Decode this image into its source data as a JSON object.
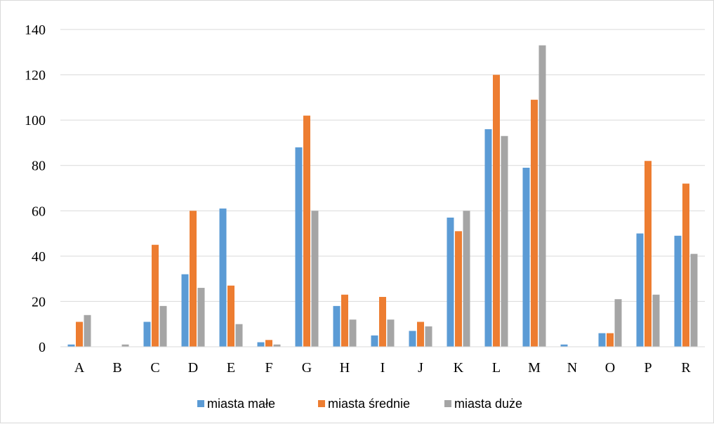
{
  "chart_data": {
    "type": "bar",
    "categories": [
      "A",
      "B",
      "C",
      "D",
      "E",
      "F",
      "G",
      "H",
      "I",
      "J",
      "K",
      "L",
      "M",
      "N",
      "O",
      "P",
      "R"
    ],
    "series": [
      {
        "name": "miasta małe",
        "color": "#5B9BD5",
        "values": [
          1,
          0,
          11,
          32,
          61,
          2,
          88,
          18,
          5,
          7,
          57,
          96,
          79,
          1,
          6,
          50,
          49
        ]
      },
      {
        "name": "miasta średnie",
        "color": "#ED7D31",
        "values": [
          11,
          0,
          45,
          60,
          27,
          3,
          102,
          23,
          22,
          11,
          51,
          120,
          109,
          0,
          6,
          82,
          72
        ]
      },
      {
        "name": "miasta duże",
        "color": "#A5A5A5",
        "values": [
          14,
          1,
          18,
          26,
          10,
          1,
          60,
          12,
          12,
          9,
          60,
          93,
          133,
          0,
          21,
          23,
          41
        ]
      }
    ],
    "ylim": [
      0,
      140
    ],
    "yticks": [
      0,
      20,
      40,
      60,
      80,
      100,
      120,
      140
    ],
    "grid": true,
    "legend_position": "bottom"
  }
}
